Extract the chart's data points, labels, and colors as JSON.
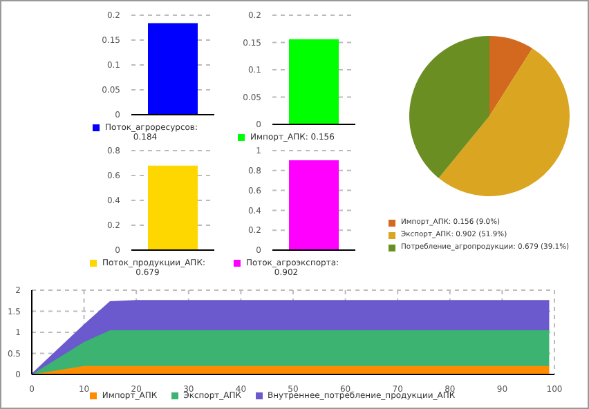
{
  "chart_data": [
    {
      "type": "bar",
      "categories": [
        null
      ],
      "series": [
        {
          "name": "Поток_агроресурсов: 0.184",
          "color": "#0000ff",
          "values": [
            0.184
          ]
        }
      ],
      "ylim": [
        0,
        0.2
      ],
      "yticks": [
        0,
        0.05,
        0.1,
        0.15,
        0.2
      ],
      "grid": "y",
      "legend": "bottom"
    },
    {
      "type": "bar",
      "categories": [
        null
      ],
      "series": [
        {
          "name": "Импорт_АПК: 0.156",
          "color": "#00ff00",
          "values": [
            0.156
          ]
        }
      ],
      "ylim": [
        0,
        0.2
      ],
      "yticks": [
        0,
        0.05,
        0.1,
        0.15,
        0.2
      ],
      "grid": "y",
      "legend": "bottom"
    },
    {
      "type": "pie",
      "categories": [
        "Импорт_АПК: 0.156 (9.0%)",
        "Экспорт_АПК: 0.902 (51.9%)",
        "Потребление_агропродукции: 0.679 (39.1%)"
      ],
      "values": [
        0.156,
        0.902,
        0.679
      ],
      "colors": [
        "#d2691e",
        "#daa520",
        "#6b8e23"
      ],
      "legend": "bottom"
    },
    {
      "type": "bar",
      "categories": [
        null
      ],
      "series": [
        {
          "name": "Поток_продукции_АПК: 0.679",
          "color": "#ffd700",
          "values": [
            0.679
          ]
        }
      ],
      "ylim": [
        0,
        0.8
      ],
      "yticks": [
        0,
        0.2,
        0.4,
        0.6,
        0.8
      ],
      "grid": "y",
      "legend": "bottom"
    },
    {
      "type": "bar",
      "categories": [
        null
      ],
      "series": [
        {
          "name": "Поток_агроэкспорта: 0.902",
          "color": "#ff00ff",
          "values": [
            0.902
          ]
        }
      ],
      "ylim": [
        0,
        1
      ],
      "yticks": [
        0,
        0.2,
        0.4,
        0.6,
        0.8,
        1
      ],
      "grid": "y",
      "legend": "bottom"
    },
    {
      "type": "area",
      "stacked": true,
      "x": [
        0,
        10,
        15,
        20,
        99
      ],
      "series": [
        {
          "name": "Импорт_АПК",
          "color": "#ff8c00",
          "values": [
            0,
            0.2,
            0.2,
            0.2,
            0.2
          ]
        },
        {
          "name": "Экспорт_АПК",
          "color": "#3cb371",
          "values": [
            0,
            0.57,
            0.85,
            0.85,
            0.85
          ]
        },
        {
          "name": "Внутреннее_потребление_продукции_АПК",
          "color": "#6a5acd",
          "values": [
            0,
            0.4,
            0.67,
            0.7,
            0.7
          ]
        }
      ],
      "xlim": [
        0,
        100
      ],
      "xticks": [
        0,
        10,
        20,
        30,
        40,
        50,
        60,
        70,
        80,
        90,
        100
      ],
      "ylim": [
        0,
        2
      ],
      "yticks": [
        0,
        0.5,
        1,
        1.5,
        2
      ],
      "grid": true,
      "legend": "bottom"
    }
  ]
}
